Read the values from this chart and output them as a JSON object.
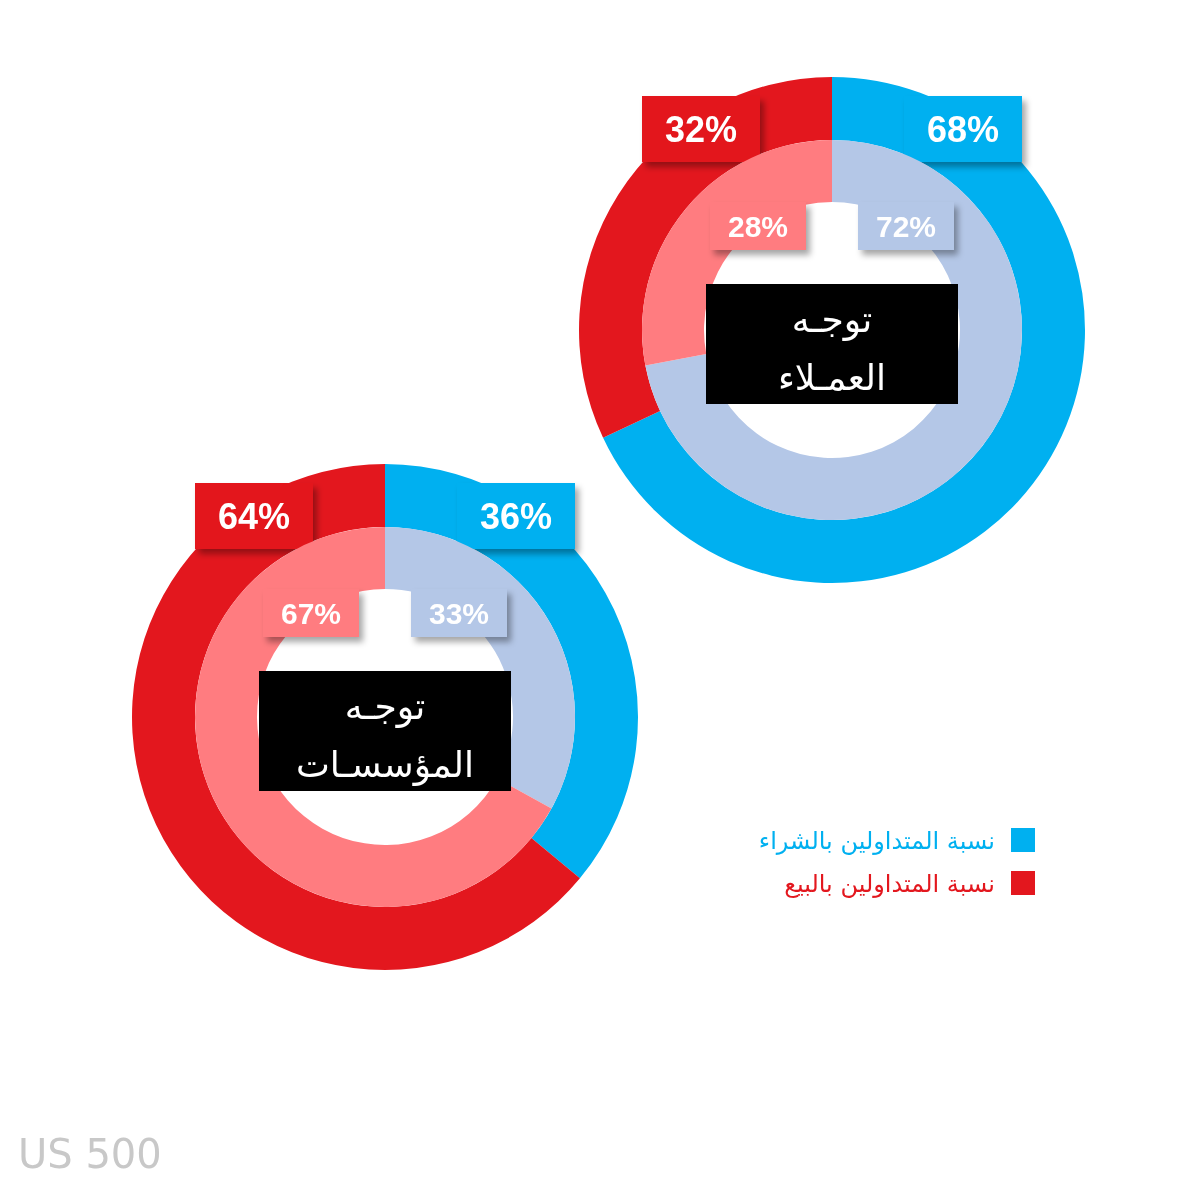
{
  "chart_data": [
    {
      "type": "donut",
      "title": "توجـه\nالعمـلاء",
      "series": [
        {
          "values": [
            68,
            32
          ],
          "colors": [
            "#00b0f0",
            "#e3171e"
          ],
          "value_labels": [
            "68%",
            "32%"
          ]
        },
        {
          "values": [
            72,
            28
          ],
          "colors": [
            "#b4c7e7",
            "#ff7c80"
          ],
          "value_labels": [
            "72%",
            "28%"
          ]
        }
      ],
      "legend": false
    },
    {
      "type": "donut",
      "title": "توجـه\nالمؤسسـات",
      "categories": [
        "نسبة المتداولين بالشراء",
        "نسبة المتداولين بالبيع"
      ],
      "series": [
        {
          "values": [
            36,
            64
          ],
          "colors": [
            "#00b0f0",
            "#e3171e"
          ],
          "value_labels": [
            "36%",
            "64%"
          ]
        },
        {
          "values": [
            33,
            67
          ],
          "colors": [
            "#b4c7e7",
            "#ff7c80"
          ],
          "value_labels": [
            "33%",
            "67%"
          ]
        }
      ],
      "legend": "right",
      "annotations": [
        "US 500"
      ]
    }
  ]
}
